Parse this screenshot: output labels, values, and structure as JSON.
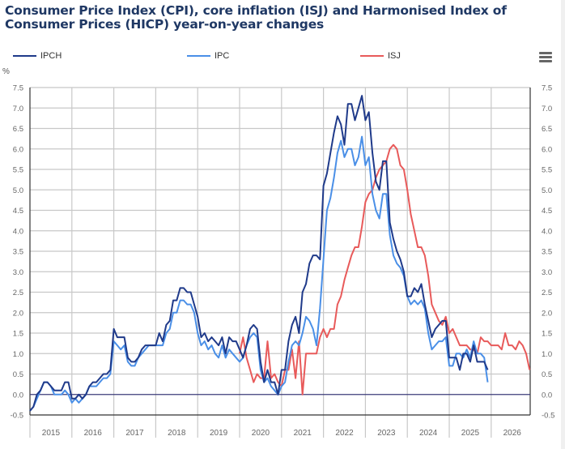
{
  "chart_data": {
    "type": "line",
    "title": "Consumer Price Index (CPI), core inflation (ISJ) and Harmonised Index of Consumer Prices (HICP) year-on-year changes",
    "ylabel": "%",
    "xlabel": "",
    "ylim": [
      -0.5,
      7.5
    ],
    "yticks": [
      "7.5",
      "7.0",
      "6.5",
      "6.0",
      "5.5",
      "5.0",
      "4.5",
      "4.0",
      "3.5",
      "3.0",
      "2.5",
      "2.0",
      "1.5",
      "1.0",
      "0.5",
      "0.0",
      "-0.5"
    ],
    "ytick_values": [
      7.5,
      7.0,
      6.5,
      6.0,
      5.5,
      5.0,
      4.5,
      4.0,
      3.5,
      3.0,
      2.5,
      2.0,
      1.5,
      1.0,
      0.5,
      0.0,
      -0.5
    ],
    "xticks": [
      "2015",
      "2016",
      "2017",
      "2018",
      "2019",
      "2020",
      "2021",
      "2022",
      "2023",
      "2024",
      "2025",
      "2026"
    ],
    "xrange_years": [
      2015,
      2026.93
    ],
    "x_start": "2015-01",
    "x_frequency": "monthly",
    "grid": true,
    "legend_position": "top",
    "dual_y_axis_mirrored": true,
    "series": [
      {
        "name": "IPCH",
        "color": "#1f3a8a",
        "start": "2015-01",
        "values": [
          -0.4,
          -0.3,
          0.0,
          0.1,
          0.3,
          0.3,
          0.2,
          0.1,
          0.1,
          0.1,
          0.3,
          0.3,
          -0.1,
          -0.1,
          0.0,
          -0.1,
          0.0,
          0.2,
          0.3,
          0.3,
          0.4,
          0.5,
          0.5,
          0.6,
          1.6,
          1.4,
          1.4,
          1.4,
          0.9,
          0.8,
          0.8,
          0.9,
          1.1,
          1.2,
          1.2,
          1.2,
          1.2,
          1.5,
          1.3,
          1.7,
          1.8,
          2.3,
          2.3,
          2.6,
          2.6,
          2.5,
          2.5,
          2.2,
          1.9,
          1.4,
          1.5,
          1.3,
          1.4,
          1.3,
          1.2,
          1.4,
          1.0,
          1.4,
          1.3,
          1.3,
          1.1,
          0.9,
          1.2,
          1.6,
          1.7,
          1.6,
          0.8,
          0.3,
          0.6,
          0.3,
          0.3,
          0.0,
          0.6,
          0.6,
          1.3,
          1.7,
          1.9,
          1.5,
          2.5,
          2.7,
          3.2,
          3.4,
          3.4,
          3.3,
          5.1,
          5.4,
          5.9,
          6.4,
          6.8,
          6.6,
          6.1,
          7.1,
          7.1,
          6.7,
          7.0,
          7.3,
          6.7,
          6.9,
          5.9,
          5.2,
          5.0,
          5.7,
          5.7,
          4.2,
          3.8,
          3.5,
          3.3,
          3.0,
          2.4,
          2.4,
          2.6,
          2.5,
          2.7,
          2.2,
          1.8,
          1.4,
          1.6,
          1.7,
          1.8,
          1.8,
          0.9,
          0.9,
          0.9,
          0.6,
          1.0,
          1.0,
          0.8,
          1.2,
          0.8,
          0.8,
          0.8,
          0.6
        ]
      },
      {
        "name": "IPC",
        "color": "#4a8fe7",
        "start": "2015-01",
        "values": [
          -0.4,
          -0.3,
          -0.1,
          0.1,
          0.3,
          0.3,
          0.2,
          0.0,
          0.0,
          0.0,
          0.1,
          0.0,
          -0.2,
          -0.1,
          -0.2,
          -0.1,
          0.0,
          0.2,
          0.2,
          0.2,
          0.3,
          0.4,
          0.4,
          0.5,
          1.3,
          1.2,
          1.1,
          1.2,
          0.8,
          0.7,
          0.7,
          0.9,
          1.0,
          1.1,
          1.2,
          1.2,
          1.2,
          1.2,
          1.2,
          1.5,
          1.6,
          2.0,
          2.0,
          2.3,
          2.3,
          2.2,
          2.2,
          2.0,
          1.5,
          1.2,
          1.3,
          1.1,
          1.2,
          1.0,
          0.9,
          1.2,
          0.9,
          1.1,
          1.0,
          0.9,
          0.8,
          0.9,
          1.2,
          1.4,
          1.5,
          1.4,
          0.6,
          0.3,
          0.4,
          0.2,
          0.1,
          0.0,
          0.2,
          0.3,
          0.8,
          1.2,
          1.3,
          1.2,
          1.5,
          1.9,
          1.8,
          1.6,
          1.2,
          2.1,
          3.3,
          4.5,
          4.8,
          5.3,
          5.9,
          6.2,
          5.8,
          6.0,
          6.0,
          5.6,
          5.8,
          6.3,
          5.6,
          5.8,
          4.9,
          4.5,
          4.3,
          4.9,
          4.9,
          3.9,
          3.4,
          3.2,
          3.1,
          2.9,
          2.4,
          2.2,
          2.3,
          2.2,
          2.3,
          2.1,
          1.5,
          1.1,
          1.2,
          1.3,
          1.3,
          1.4,
          0.7,
          0.7,
          1.0,
          1.0,
          0.9,
          1.1,
          0.9,
          1.3,
          1.0,
          1.0,
          0.9,
          0.3
        ]
      },
      {
        "name": "ISJ",
        "color": "#e85a5a",
        "start": "2020-01",
        "values": [
          1.0,
          1.4,
          0.9,
          0.6,
          0.3,
          0.5,
          0.4,
          0.4,
          1.3,
          0.4,
          0.5,
          0.3,
          0.2,
          0.6,
          0.6,
          1.1,
          0.4,
          1.3,
          0.0,
          1.0,
          1.0,
          1.0,
          1.0,
          1.4,
          1.6,
          1.4,
          1.6,
          1.6,
          2.2,
          2.4,
          2.8,
          3.1,
          3.4,
          3.6,
          3.6,
          4.1,
          4.7,
          4.9,
          5.0,
          5.3,
          5.5,
          5.6,
          5.7,
          6.0,
          6.1,
          6.0,
          5.6,
          5.5,
          5.0,
          4.4,
          4.0,
          3.6,
          3.6,
          3.4,
          2.9,
          2.2,
          2.0,
          1.8,
          1.7,
          1.9,
          1.5,
          1.6,
          1.4,
          1.2,
          1.2,
          1.2,
          1.1,
          1.1,
          1.0,
          1.4,
          1.3,
          1.3,
          1.2,
          1.2,
          1.2,
          1.1,
          1.5,
          1.2,
          1.2,
          1.1,
          1.3,
          1.2,
          1.0,
          0.6
        ]
      }
    ]
  },
  "menu_icon": "hamburger-menu-icon"
}
